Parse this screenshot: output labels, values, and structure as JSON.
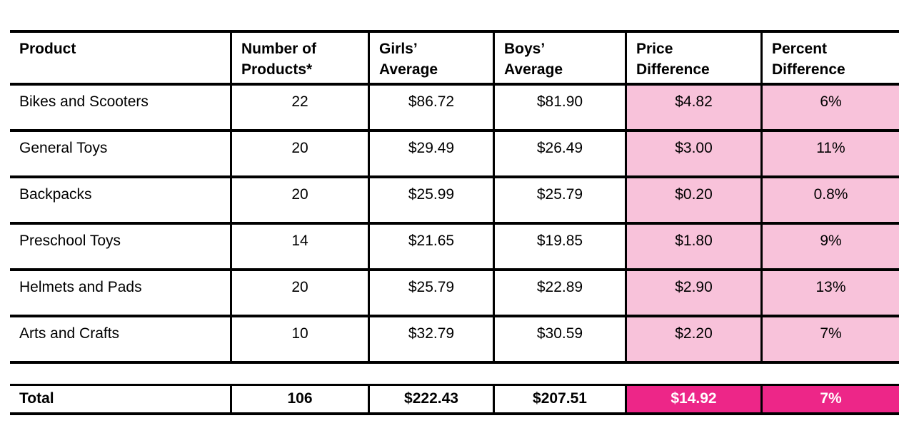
{
  "chart_data": {
    "type": "table",
    "columns": [
      "Product",
      "Number of\nProducts*",
      "Girls’\nAverage",
      "Boys’\nAverage",
      "Price\nDifference",
      "Percent\nDifference"
    ],
    "rows": [
      [
        "Bikes and Scooters",
        "22",
        "$86.72",
        "$81.90",
        "$4.82",
        "6%"
      ],
      [
        "General Toys",
        "20",
        "$29.49",
        "$26.49",
        "$3.00",
        "11%"
      ],
      [
        "Backpacks",
        "20",
        "$25.99",
        "$25.79",
        "$0.20",
        "0.8%"
      ],
      [
        "Preschool Toys",
        "14",
        "$21.65",
        "$19.85",
        "$1.80",
        "9%"
      ],
      [
        "Helmets and Pads",
        "20",
        "$25.79",
        "$22.89",
        "$2.90",
        "13%"
      ],
      [
        "Arts and Crafts",
        "10",
        "$32.79",
        "$30.59",
        "$2.20",
        "7%"
      ]
    ],
    "total_row": [
      "Total",
      "106",
      "$222.43",
      "$207.51",
      "$14.92",
      "7%"
    ],
    "highlighted_columns": [
      "Price Difference",
      "Percent Difference"
    ],
    "layout_hints": {
      "grid": "ruled table, no outer left/right borders",
      "highlight_style": "light pink on body difference cells, magenta with white bold text on total difference cells"
    }
  },
  "colors": {
    "row_highlight": "#F8C2DA",
    "total_highlight": "#ED2688",
    "border": "#000000",
    "text": "#000000",
    "total_text": "#FFFFFF"
  }
}
